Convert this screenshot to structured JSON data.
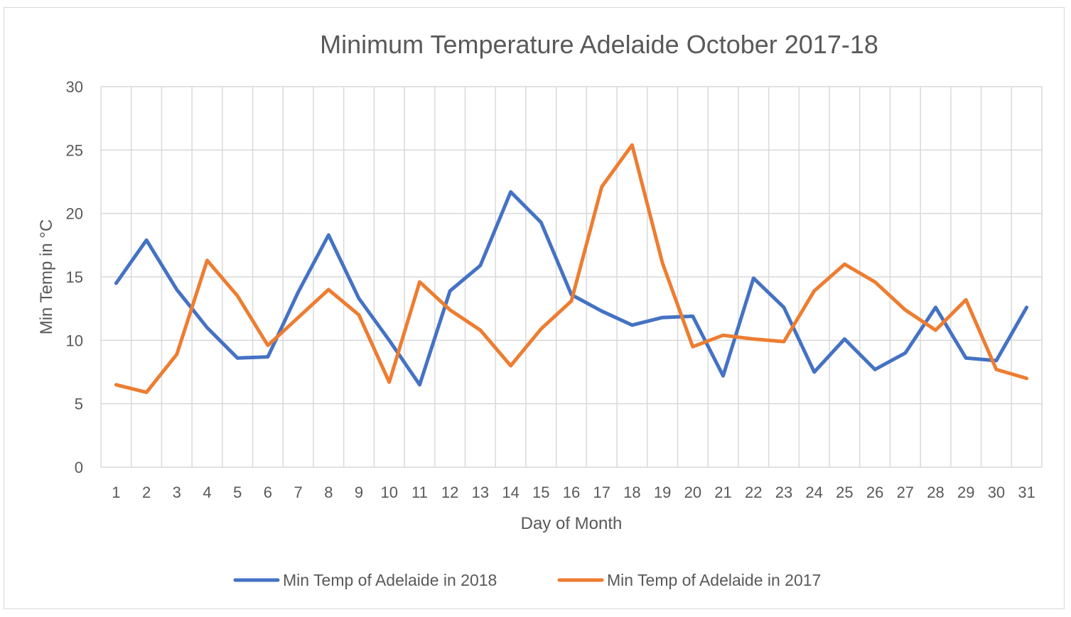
{
  "chart_data": {
    "type": "line",
    "title": "Minimum Temperature Adelaide October 2017-18",
    "xlabel": "Day of Month",
    "ylabel": "Min Temp in °C",
    "ylim": [
      0,
      30
    ],
    "yticks": [
      0,
      5,
      10,
      15,
      20,
      25,
      30
    ],
    "grid": true,
    "legend_position": "bottom",
    "categories": [
      "1",
      "2",
      "3",
      "4",
      "5",
      "6",
      "7",
      "8",
      "9",
      "10",
      "11",
      "12",
      "13",
      "14",
      "15",
      "16",
      "17",
      "18",
      "19",
      "20",
      "21",
      "22",
      "23",
      "24",
      "25",
      "26",
      "27",
      "28",
      "29",
      "30",
      "31"
    ],
    "series": [
      {
        "name": "Min Temp of Adelaide in 2018",
        "color": "#4472c4",
        "values": [
          14.5,
          17.9,
          14.0,
          11.0,
          8.6,
          8.7,
          13.8,
          18.3,
          13.3,
          10.0,
          6.5,
          13.9,
          15.9,
          21.7,
          19.3,
          13.6,
          12.3,
          11.2,
          11.8,
          11.9,
          7.2,
          14.9,
          12.6,
          7.5,
          10.1,
          7.7,
          9.0,
          12.6,
          8.6,
          8.4,
          12.6
        ]
      },
      {
        "name": "Min Temp of Adelaide in 2017",
        "color": "#ed7d31",
        "values": [
          6.5,
          5.9,
          8.9,
          16.3,
          13.5,
          9.6,
          11.8,
          14.0,
          12.0,
          6.7,
          14.6,
          12.4,
          10.8,
          8.0,
          10.9,
          13.1,
          22.1,
          25.4,
          16.1,
          9.5,
          10.4,
          10.1,
          9.9,
          13.9,
          16.0,
          14.6,
          12.4,
          10.8,
          13.2,
          7.7,
          7.0
        ]
      }
    ]
  }
}
